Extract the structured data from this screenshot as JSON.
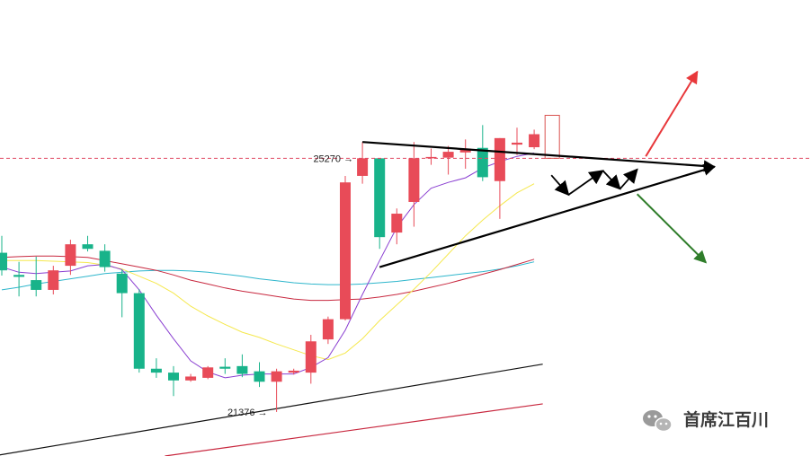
{
  "watermark": {
    "icon": "wechat-icon",
    "text": "首席江百川"
  },
  "chart_data": {
    "type": "candlestick",
    "ylim": [
      20700,
      27700
    ],
    "colors": {
      "up": "#e84b58",
      "down": "#18b38a",
      "ma5": "#8a3fd1",
      "ma10": "#f5e84e",
      "ma20": "#c8283f",
      "ma30": "#2eb6cc",
      "ma60": "#111111",
      "ma120": "#c8283f",
      "trend": "#000000",
      "up_arrow": "#e8383b",
      "down_arrow": "#2f7d2a",
      "dashed_line": "#e04a63",
      "projection_box": "#d9534f"
    },
    "candles": [
      {
        "o": 23820,
        "h": 24080,
        "l": 23470,
        "c": 23550
      },
      {
        "o": 23480,
        "h": 23680,
        "l": 23150,
        "c": 23450
      },
      {
        "o": 23400,
        "h": 23760,
        "l": 23150,
        "c": 23250
      },
      {
        "o": 23250,
        "h": 23620,
        "l": 23180,
        "c": 23550
      },
      {
        "o": 23620,
        "h": 24020,
        "l": 23480,
        "c": 23950
      },
      {
        "o": 23950,
        "h": 24080,
        "l": 23840,
        "c": 23880
      },
      {
        "o": 23850,
        "h": 23950,
        "l": 23530,
        "c": 23600
      },
      {
        "o": 23500,
        "h": 23560,
        "l": 22830,
        "c": 23200
      },
      {
        "o": 23200,
        "h": 23260,
        "l": 21980,
        "c": 22040
      },
      {
        "o": 22040,
        "h": 22200,
        "l": 21900,
        "c": 21980
      },
      {
        "o": 21980,
        "h": 22080,
        "l": 21620,
        "c": 21860
      },
      {
        "o": 21860,
        "h": 21960,
        "l": 21840,
        "c": 21920
      },
      {
        "o": 21900,
        "h": 22080,
        "l": 21880,
        "c": 22060
      },
      {
        "o": 22070,
        "h": 22200,
        "l": 21960,
        "c": 22040
      },
      {
        "o": 22080,
        "h": 22260,
        "l": 21910,
        "c": 21960
      },
      {
        "o": 22000,
        "h": 22140,
        "l": 21760,
        "c": 21840
      },
      {
        "o": 21840,
        "h": 22040,
        "l": 21376,
        "c": 22000
      },
      {
        "o": 21980,
        "h": 22040,
        "l": 21950,
        "c": 22010
      },
      {
        "o": 21980,
        "h": 22560,
        "l": 21810,
        "c": 22460
      },
      {
        "o": 22490,
        "h": 22840,
        "l": 22420,
        "c": 22800
      },
      {
        "o": 22800,
        "h": 25000,
        "l": 22780,
        "c": 24900
      },
      {
        "o": 25000,
        "h": 25520,
        "l": 24880,
        "c": 25270
      },
      {
        "o": 25270,
        "h": 25270,
        "l": 23880,
        "c": 24060
      },
      {
        "o": 24130,
        "h": 24500,
        "l": 23950,
        "c": 24420
      },
      {
        "o": 24600,
        "h": 25520,
        "l": 24220,
        "c": 25270
      },
      {
        "o": 25270,
        "h": 25420,
        "l": 25170,
        "c": 25290
      },
      {
        "o": 25280,
        "h": 25460,
        "l": 25020,
        "c": 25370
      },
      {
        "o": 25360,
        "h": 25560,
        "l": 25110,
        "c": 25420
      },
      {
        "o": 25430,
        "h": 25780,
        "l": 24920,
        "c": 24980
      },
      {
        "o": 24920,
        "h": 25580,
        "l": 24340,
        "c": 25580
      },
      {
        "o": 25480,
        "h": 25740,
        "l": 25320,
        "c": 25510
      },
      {
        "o": 25440,
        "h": 25710,
        "l": 25410,
        "c": 25640
      }
    ],
    "ma5": [
      23600,
      23520,
      23500,
      23520,
      23540,
      23620,
      23640,
      23560,
      23250,
      22860,
      22500,
      22160,
      21990,
      21900,
      21940,
      21960,
      21960,
      21960,
      22060,
      22210,
      22630,
      23180,
      23700,
      24210,
      24560,
      24810,
      24900,
      24970,
      25120,
      25220,
      25300,
      25350
    ],
    "ma10": [
      23700,
      23700,
      23700,
      23690,
      23680,
      23670,
      23630,
      23570,
      23460,
      23350,
      23200,
      23000,
      22850,
      22720,
      22600,
      22520,
      22420,
      22330,
      22240,
      22180,
      22280,
      22500,
      22780,
      23020,
      23260,
      23520,
      23800,
      24080,
      24320,
      24540,
      24740,
      24880
    ],
    "ma20": [
      23750,
      23760,
      23770,
      23770,
      23760,
      23750,
      23700,
      23650,
      23600,
      23550,
      23480,
      23400,
      23340,
      23280,
      23230,
      23190,
      23150,
      23110,
      23090,
      23090,
      23100,
      23110,
      23140,
      23180,
      23230,
      23290,
      23350,
      23420,
      23490,
      23560,
      23640,
      23720
    ],
    "ma30": [
      23250,
      23290,
      23340,
      23380,
      23420,
      23460,
      23500,
      23520,
      23540,
      23550,
      23550,
      23540,
      23520,
      23490,
      23460,
      23420,
      23390,
      23360,
      23340,
      23330,
      23330,
      23340,
      23360,
      23380,
      23410,
      23440,
      23470,
      23500,
      23530,
      23570,
      23620,
      23680
    ],
    "ma60_line": [
      [
        -0.5,
        20700
      ],
      [
        31.5,
        22110
      ]
    ],
    "ma120_line": [
      [
        9.5,
        20700
      ],
      [
        31.5,
        21500
      ]
    ],
    "annotations": [
      {
        "text": "25270",
        "candle": 21,
        "value": 25270
      },
      {
        "text": "21376",
        "candle": 16,
        "value": 21376
      }
    ],
    "dashed_level": 25270,
    "projection_box": {
      "candle": 32,
      "high": 25930,
      "low": 25270
    },
    "triangle": {
      "upper": [
        [
          21,
          25520
        ],
        [
          41.5,
          25140
        ]
      ],
      "lower": [
        [
          22,
          23600
        ],
        [
          41.5,
          25140
        ]
      ]
    },
    "zigzag": [
      [
        32,
        25010
      ],
      [
        33,
        24710
      ],
      [
        35,
        25080
      ],
      [
        36,
        24800
      ],
      [
        37,
        25100
      ]
    ],
    "breakout_up": [
      [
        37.5,
        25300
      ],
      [
        40.5,
        26600
      ]
    ],
    "breakout_down": [
      [
        37,
        24720
      ],
      [
        41,
        23670
      ]
    ]
  }
}
